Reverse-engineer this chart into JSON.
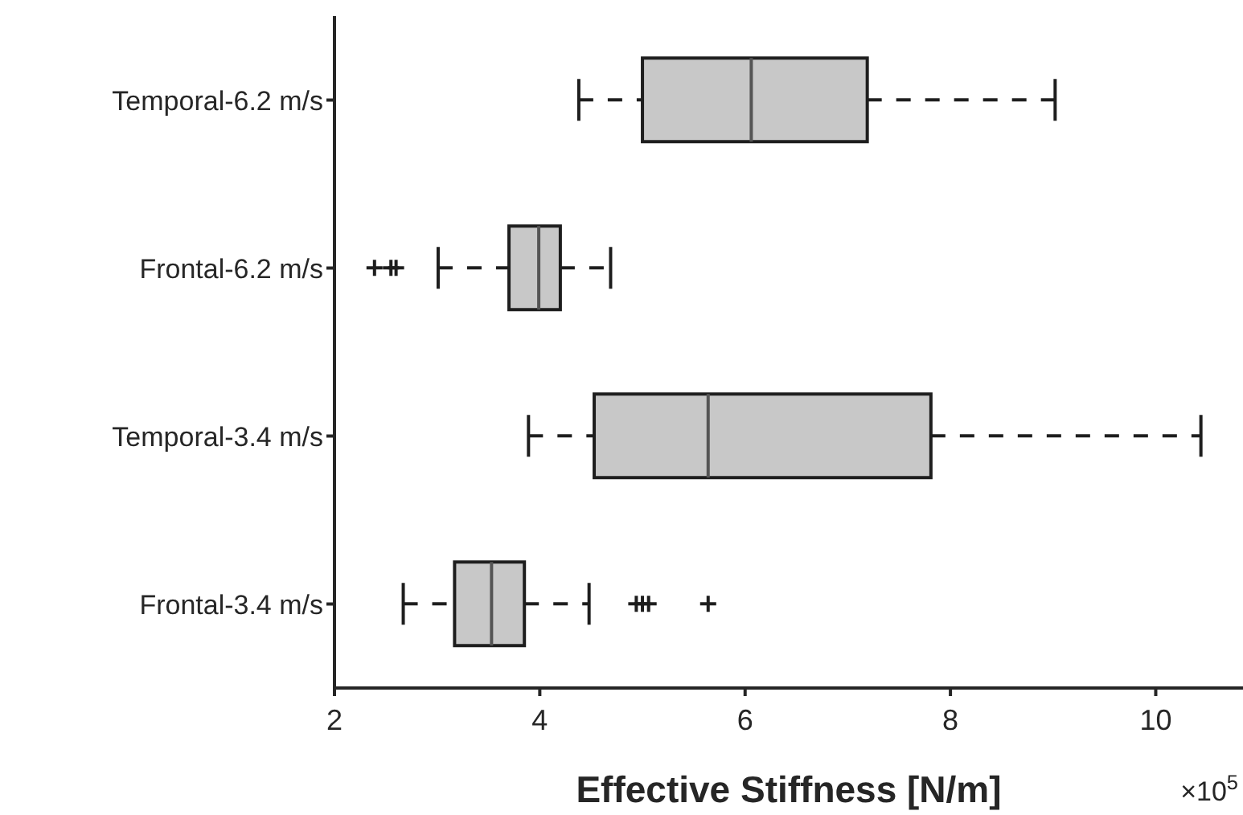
{
  "chart_data": {
    "type": "box",
    "orientation": "horizontal",
    "categories": [
      "Temporal-6.2 m/s",
      "Frontal-6.2 m/s",
      "Temporal-3.4 m/s",
      "Frontal-3.4 m/s"
    ],
    "boxes": [
      {
        "low": 4.38,
        "q1": 5.0,
        "median": 6.06,
        "q3": 7.19,
        "high": 9.02
      },
      {
        "low": 3.01,
        "q1": 3.7,
        "median": 3.99,
        "q3": 4.2,
        "high": 4.69,
        "outliers": [
          2.39,
          2.55,
          2.6
        ]
      },
      {
        "low": 3.89,
        "q1": 4.53,
        "median": 5.64,
        "q3": 7.81,
        "high": 10.44
      },
      {
        "low": 2.67,
        "q1": 3.17,
        "median": 3.53,
        "q3": 3.85,
        "high": 4.48,
        "outliers": [
          4.94,
          5.0,
          5.06,
          5.64
        ]
      }
    ],
    "color": "#c8c8c8",
    "xlabel": "Effective Stiffness [N/m]",
    "annotations": [
      "×10$^{5}$"
    ],
    "xlim": [
      2,
      10.85
    ],
    "xticks": [
      2,
      4,
      6,
      8,
      10
    ]
  }
}
